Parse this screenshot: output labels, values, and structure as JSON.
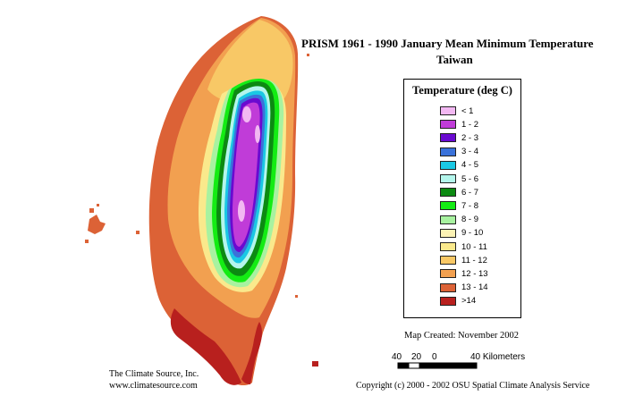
{
  "title": {
    "line1": "PRISM 1961 - 1990  January Mean Minimum Temperature",
    "line2": "Taiwan"
  },
  "legend": {
    "title": "Temperature (deg C)",
    "items": [
      {
        "label": "< 1",
        "color": "#f2b8f2"
      },
      {
        "label": "1 - 2",
        "color": "#c03cd8"
      },
      {
        "label": "2 - 3",
        "color": "#6a0ad0"
      },
      {
        "label": "3 - 4",
        "color": "#3a72da"
      },
      {
        "label": "4 - 5",
        "color": "#1ac8e4"
      },
      {
        "label": "5 - 6",
        "color": "#b4f6ec"
      },
      {
        "label": "6 - 7",
        "color": "#0c8a12"
      },
      {
        "label": "7 - 8",
        "color": "#14ec14"
      },
      {
        "label": "8 - 9",
        "color": "#a8f2a0"
      },
      {
        "label": "9 - 10",
        "color": "#fcf2b4"
      },
      {
        "label": "10 - 11",
        "color": "#fae98c"
      },
      {
        "label": "11 - 12",
        "color": "#f8c866"
      },
      {
        "label": "12 - 13",
        "color": "#f2a050"
      },
      {
        "label": "13 - 14",
        "color": "#dc6236"
      },
      {
        "label": ">14",
        "color": "#b8201e"
      }
    ]
  },
  "map_created": "Map Created: November 2002",
  "scale": {
    "labels": [
      "40",
      "20",
      "0",
      "40 Kilometers"
    ]
  },
  "credit": {
    "line1": "The Climate Source, Inc.",
    "line2": "www.climatesource.com"
  },
  "copyright": "Copyright (c) 2000 - 2002 OSU Spatial Climate Analysis Service"
}
